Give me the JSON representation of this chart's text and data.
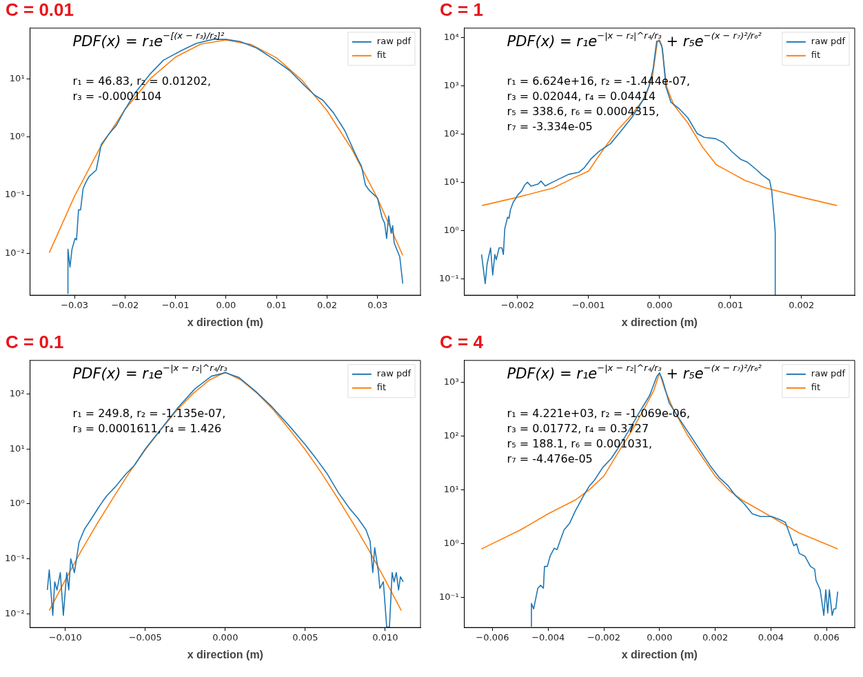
{
  "chart_data": [
    {
      "type": "line",
      "title": "C = 0.01",
      "xlabel": "x direction (m)",
      "log": "y",
      "legend": "top right",
      "marker": "none",
      "xlim": [
        -0.0388,
        0.0385
      ],
      "ylim": [
        0.0019,
        75
      ],
      "xticks": [
        {
          "value": -0.03,
          "label": "−0.03"
        },
        {
          "value": -0.02,
          "label": "−0.02"
        },
        {
          "value": -0.01,
          "label": "−0.01"
        },
        {
          "value": 0,
          "label": "0.00"
        },
        {
          "value": 0.01,
          "label": "0.01"
        },
        {
          "value": 0.02,
          "label": "0.02"
        },
        {
          "value": 0.03,
          "label": "0.03"
        }
      ],
      "yticks": [
        {
          "value": 0.01,
          "label": "10⁻²"
        },
        {
          "value": 0.1,
          "label": "10⁻¹"
        },
        {
          "value": 1,
          "label": "10⁰"
        },
        {
          "value": 10,
          "label": "10¹"
        }
      ],
      "annotations": [
        "PDF(x) = r₁e$^{−[(x − r₃)/r₂]²}$",
        "r₁ = 46.83, r₂ = 0.01202,",
        "r₃ = -0.0001104"
      ],
      "series": [
        {
          "name": "raw pdf",
          "color": "#1f77b4",
          "x": [
            -0.0313,
            -0.0313,
            -0.0309,
            -0.0305,
            -0.0299,
            -0.0296,
            -0.0292,
            -0.0288,
            -0.0283,
            -0.0277,
            -0.0271,
            -0.0257,
            -0.0247,
            -0.0233,
            -0.0217,
            -0.02,
            -0.0179,
            -0.0151,
            -0.0124,
            -0.0091,
            -0.0059,
            -0.0026,
            0,
            0.0028,
            0.0061,
            0.0094,
            0.0126,
            0.0154,
            0.0175,
            0.0192,
            0.0213,
            0.0235,
            0.0254,
            0.0262,
            0.0268,
            0.0276,
            0.0284,
            0.03,
            0.0309,
            0.0314,
            0.0318,
            0.0322,
            0.0327,
            0.033,
            0.0333,
            0.0344,
            0.035
          ],
          "values": [
            0.002,
            0.0117,
            0.0058,
            0.0117,
            0.018,
            0.017,
            0.056,
            0.056,
            0.13,
            0.17,
            0.21,
            0.27,
            0.75,
            1.1,
            1.6,
            3.0,
            5.9,
            12,
            21,
            30,
            41,
            48,
            48,
            44,
            34,
            22,
            14,
            7.9,
            5.3,
            4.3,
            2.6,
            1.3,
            0.56,
            0.4,
            0.32,
            0.15,
            0.12,
            0.089,
            0.041,
            0.033,
            0.018,
            0.044,
            0.022,
            0.03,
            0.015,
            0.0087,
            0.003
          ]
        },
        {
          "name": "fit",
          "color": "#ff7f0e",
          "x": [
            -0.035,
            -0.03,
            -0.025,
            -0.02,
            -0.015,
            -0.01,
            -0.005,
            0,
            0.005,
            0.01,
            0.015,
            0.02,
            0.025,
            0.03,
            0.035
          ],
          "values": [
            0.0102,
            0.096,
            0.64,
            3.0,
            10.1,
            23.8,
            39.7,
            46.8,
            39.1,
            23.1,
            9.6,
            2.85,
            0.6,
            0.088,
            0.0092
          ]
        }
      ]
    },
    {
      "type": "line",
      "title": "C = 1",
      "xlabel": "x direction (m)",
      "log": "y",
      "legend": "top right",
      "marker": "none",
      "xlim": [
        -0.00275,
        0.00275
      ],
      "ylim": [
        0.046,
        15500
      ],
      "xticks": [
        {
          "value": -0.002,
          "label": "−0.002"
        },
        {
          "value": -0.001,
          "label": "−0.001"
        },
        {
          "value": 0,
          "label": "0.000"
        },
        {
          "value": 0.001,
          "label": "0.001"
        },
        {
          "value": 0.002,
          "label": "0.002"
        }
      ],
      "yticks": [
        {
          "value": 0.1,
          "label": "10⁻¹"
        },
        {
          "value": 1,
          "label": "10⁰"
        },
        {
          "value": 10,
          "label": "10¹"
        },
        {
          "value": 100,
          "label": "10²"
        },
        {
          "value": 1000,
          "label": "10³"
        },
        {
          "value": 10000,
          "label": "10⁴"
        }
      ],
      "annotations": [
        "PDF(x) = r₁e$^{−|x − r₂|^r₄/r₃}$ + r₅e$^{−(x − r₇)²/r₆²}$",
        "r₁ = 6.624e+16, r₂ = -1.444e-07,",
        "r₃ = 0.02044, r₄ = 0.04414",
        "r₅ = 338.6, r₆ = 0.0004315,",
        "r₇ = -3.334e-05"
      ],
      "series": [
        {
          "name": "raw pdf",
          "color": "#1f77b4",
          "x": [
            -0.002507,
            -0.002456,
            -0.00243,
            -0.00238,
            -0.00235,
            -0.00232,
            -0.0023,
            -0.00226,
            -0.00222,
            -0.0022,
            -0.00218,
            -0.00214,
            -0.00212,
            -0.0021,
            -0.00206,
            -0.00203,
            -0.002,
            -0.00194,
            -0.0019,
            -0.00186,
            -0.00181,
            -0.00171,
            -0.00167,
            -0.00161,
            -0.00151,
            -0.0014,
            -0.00128,
            -0.00114,
            -0.00106,
            -0.00097,
            -0.00085,
            -0.00069,
            -0.00054,
            -0.00038,
            -0.00023,
            -0.00015,
            -9e-05,
            -4e-05,
            0,
            4e-05,
            9e-05,
            0.00016,
            0.00028,
            0.0004,
            0.00053,
            0.00063,
            0.00079,
            0.0009,
            0.00102,
            0.00114,
            0.00124,
            0.00137,
            0.00145,
            0.00155,
            0.00158,
            0.00161,
            0.00163,
            0.00163
          ],
          "values": [
            0.32,
            0.08,
            0.2,
            0.44,
            0.12,
            0.32,
            0.25,
            0.44,
            0.44,
            0.32,
            1.1,
            1.9,
            1.8,
            2.7,
            3.9,
            4.5,
            5.4,
            6.7,
            8.8,
            10,
            8.3,
            9.2,
            10.6,
            8.4,
            10,
            12,
            14.6,
            16,
            20,
            30,
            44,
            63,
            116,
            230,
            510,
            950,
            2240,
            8300,
            8300,
            6000,
            950,
            455,
            330,
            215,
            102,
            85,
            80,
            66,
            43,
            30,
            26,
            18,
            14,
            11,
            6.7,
            2.2,
            0.93,
            0.047
          ]
        },
        {
          "name": "fit",
          "color": "#ff7f0e",
          "x": [
            -0.0025,
            -0.002,
            -0.0015,
            -0.0012,
            -0.001,
            -0.0008,
            -0.0006,
            -0.0004,
            -0.0002,
            -0.0001,
            -3e-05,
            0,
            3e-05,
            0.0001,
            0.0002,
            0.0004,
            0.0006,
            0.0008,
            0.001,
            0.0012,
            0.0015,
            0.002,
            0.0025
          ],
          "values": [
            3.3,
            4.9,
            7.6,
            12.5,
            17,
            46,
            116,
            243,
            580,
            1550,
            8300,
            8900,
            6900,
            950,
            400,
            168,
            55,
            23,
            16,
            11,
            7.6,
            4.9,
            3.3
          ]
        }
      ]
    },
    {
      "type": "line",
      "title": "C = 0.1",
      "xlabel": "x direction (m)",
      "log": "y",
      "legend": "top right",
      "marker": "none",
      "xlim": [
        -0.0122,
        0.0122
      ],
      "ylim": [
        0.0056,
        410
      ],
      "xticks": [
        {
          "value": -0.01,
          "label": "−0.010"
        },
        {
          "value": -0.005,
          "label": "−0.005"
        },
        {
          "value": 0,
          "label": "0.000"
        },
        {
          "value": 0.005,
          "label": "0.005"
        },
        {
          "value": 0.01,
          "label": "0.010"
        }
      ],
      "yticks": [
        {
          "value": 0.01,
          "label": "10⁻²"
        },
        {
          "value": 0.1,
          "label": "10⁻¹"
        },
        {
          "value": 1,
          "label": "10⁰"
        },
        {
          "value": 10,
          "label": "10¹"
        },
        {
          "value": 100,
          "label": "10²"
        }
      ],
      "annotations": [
        "PDF(x) = r₁e$^{−|x − r₂|^r₄/r₃}$",
        "r₁ = 249.8, r₂ = -1.135e-07,",
        "r₃ = 0.0001611, r₄ = 1.426"
      ],
      "series": [
        {
          "name": "raw pdf",
          "color": "#1f77b4",
          "x": [
            -0.01112,
            -0.011,
            -0.01078,
            -0.01066,
            -0.01052,
            -0.01031,
            -0.01012,
            -0.00991,
            -0.00978,
            -0.00966,
            -0.00943,
            -0.00914,
            -0.00879,
            -0.00845,
            -0.00793,
            -0.00767,
            -0.00741,
            -0.0069,
            -0.00621,
            -0.00569,
            -0.005,
            -0.00397,
            -0.00293,
            -0.0019,
            -0.00086,
            0,
            0.00086,
            0.0019,
            0.00293,
            0.00397,
            0.005,
            0.00569,
            0.00638,
            0.00707,
            0.00776,
            0.00828,
            0.00879,
            0.00905,
            0.00922,
            0.00934,
            0.00957,
            0.00966,
            0.00988,
            0.01009,
            0.01026,
            0.01043,
            0.01055,
            0.01069,
            0.01083,
            0.01095,
            0.01112
          ],
          "values": [
            0.027,
            0.063,
            0.0093,
            0.038,
            0.027,
            0.056,
            0.0093,
            0.056,
            0.027,
            0.1,
            0.056,
            0.2,
            0.35,
            0.49,
            0.85,
            1.1,
            1.4,
            2.0,
            3.5,
            5.0,
            10,
            24,
            58,
            124,
            212,
            245,
            200,
            112,
            58,
            27,
            12,
            6.6,
            3.5,
            1.6,
            0.83,
            0.55,
            0.34,
            0.21,
            0.056,
            0.16,
            0.059,
            0.029,
            0.038,
            0.0057,
            0.0057,
            0.056,
            0.038,
            0.056,
            0.027,
            0.047,
            0.038
          ]
        },
        {
          "name": "fit",
          "color": "#ff7f0e",
          "x": [
            -0.011,
            -0.01,
            -0.009,
            -0.008,
            -0.007,
            -0.006,
            -0.005,
            -0.004,
            -0.003,
            -0.002,
            -0.001,
            0,
            0.001,
            0.002,
            0.003,
            0.004,
            0.005,
            0.006,
            0.007,
            0.008,
            0.009,
            0.01,
            0.011
          ],
          "values": [
            0.0114,
            0.041,
            0.14,
            0.44,
            1.3,
            3.7,
            9.7,
            23,
            52,
            103,
            180,
            250,
            180,
            103,
            52,
            23,
            9.7,
            3.7,
            1.3,
            0.44,
            0.14,
            0.041,
            0.0114
          ]
        }
      ]
    },
    {
      "type": "line",
      "title": "C = 4",
      "xlabel": "x direction (m)",
      "log": "y",
      "legend": "top right",
      "marker": "none",
      "xlim": [
        -0.00701,
        0.00701
      ],
      "ylim": [
        0.028,
        2520
      ],
      "xticks": [
        {
          "value": -0.006,
          "label": "−0.006"
        },
        {
          "value": -0.004,
          "label": "−0.004"
        },
        {
          "value": -0.002,
          "label": "−0.002"
        },
        {
          "value": 0,
          "label": "0.000"
        },
        {
          "value": 0.002,
          "label": "0.002"
        },
        {
          "value": 0.004,
          "label": "0.004"
        },
        {
          "value": 0.006,
          "label": "0.006"
        }
      ],
      "yticks": [
        {
          "value": 0.1,
          "label": "10⁻¹"
        },
        {
          "value": 1,
          "label": "10⁰"
        },
        {
          "value": 10,
          "label": "10¹"
        },
        {
          "value": 100,
          "label": "10²"
        },
        {
          "value": 1000,
          "label": "10³"
        }
      ],
      "annotations": [
        "PDF(x) = r₁e$^{−|x − r₂|^r₄/r₃}$ + r₅e$^{−(x − r₇)²/r₆²}$",
        "r₁ = 4.221e+03, r₂ = -1.069e-06,",
        "r₃ = 0.01772, r₄ = 0.3727",
        "r₅ = 188.1, r₆ = 0.001031,",
        "r₇ = -4.476e-05"
      ],
      "series": [
        {
          "name": "raw pdf",
          "color": "#1f77b4",
          "x": [
            -0.0046,
            -0.0046,
            -0.00452,
            -0.00437,
            -0.00427,
            -0.00417,
            -0.00413,
            -0.00403,
            -0.00393,
            -0.00378,
            -0.00368,
            -0.00358,
            -0.00343,
            -0.00323,
            -0.00303,
            -0.00273,
            -0.00253,
            -0.00234,
            -0.00204,
            -0.00174,
            -0.00154,
            -0.00114,
            -0.00075,
            -0.00035,
            -0.0001,
            0,
            0.0001,
            0.00035,
            0.00084,
            0.00134,
            0.00184,
            0.00214,
            0.00244,
            0.00273,
            0.00303,
            0.00333,
            0.00363,
            0.00403,
            0.00432,
            0.00452,
            0.00462,
            0.00482,
            0.00492,
            0.00502,
            0.00522,
            0.00542,
            0.00557,
            0.00562,
            0.00577,
            0.0059,
            0.00597,
            0.00604,
            0.0061,
            0.0062,
            0.00626,
            0.00633,
            0.0064
          ],
          "values": [
            0.029,
            0.078,
            0.062,
            0.15,
            0.17,
            0.15,
            0.38,
            0.38,
            0.59,
            0.83,
            0.78,
            1.1,
            1.8,
            2.4,
            4.0,
            7.8,
            11.6,
            15,
            26,
            38,
            54,
            117,
            260,
            570,
            1260,
            1480,
            1120,
            405,
            165,
            67,
            27,
            17,
            12.3,
            7.8,
            5.6,
            3.6,
            3.2,
            3.2,
            2.8,
            2.5,
            1.8,
            0.92,
            1.0,
            0.66,
            0.59,
            0.38,
            0.34,
            0.21,
            0.14,
            0.047,
            0.14,
            0.052,
            0.14,
            0.047,
            0.062,
            0.062,
            0.13
          ]
        },
        {
          "name": "fit",
          "color": "#ff7f0e",
          "x": [
            -0.0064,
            -0.005,
            -0.004,
            -0.003,
            -0.0025,
            -0.002,
            -0.0015,
            -0.001,
            -0.0005,
            -0.0002,
            0,
            0.0002,
            0.0005,
            0.001,
            0.0015,
            0.002,
            0.0025,
            0.003,
            0.004,
            0.005,
            0.0064
          ],
          "values": [
            0.8,
            1.8,
            3.6,
            6.6,
            10.3,
            18,
            48,
            124,
            360,
            710,
            1480,
            710,
            310,
            105,
            43,
            18,
            9.8,
            6.3,
            3.2,
            1.6,
            0.8
          ]
        }
      ]
    }
  ]
}
